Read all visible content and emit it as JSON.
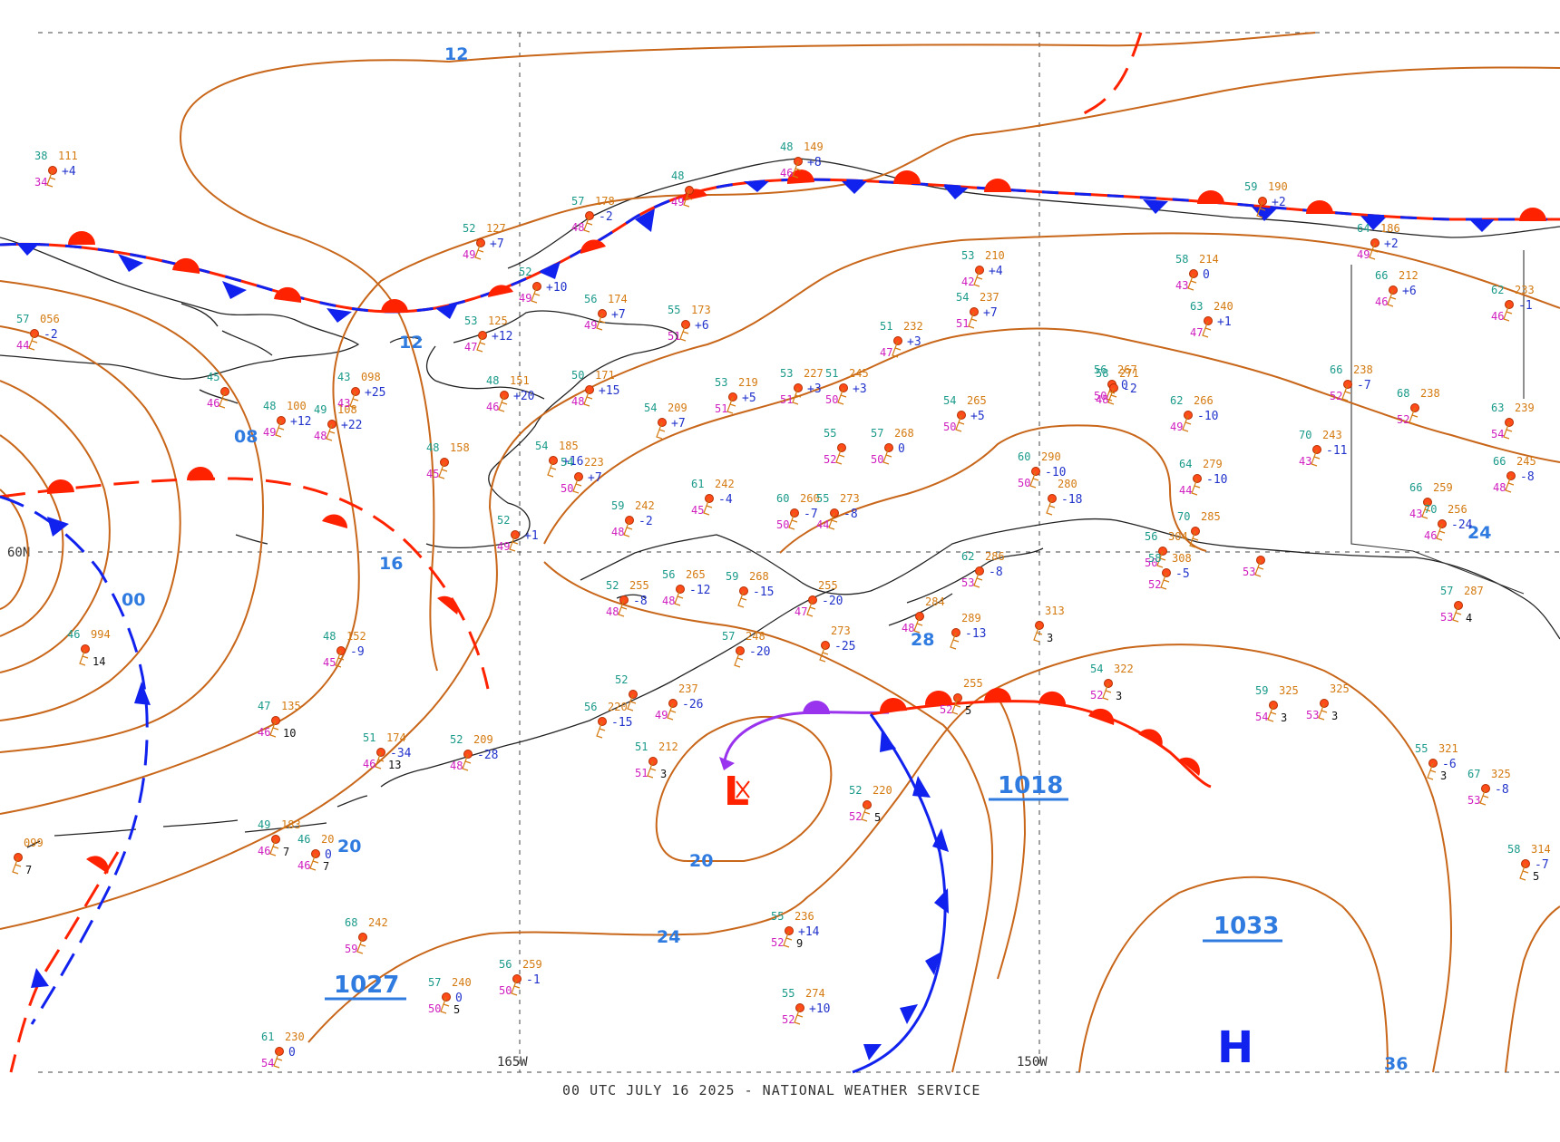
{
  "footer": "00 UTC JULY 16 2025 - NATIONAL WEATHER SERVICE",
  "grid_labels": {
    "lon_165": "165W",
    "lon_150": "150W",
    "lat_60": "60N"
  },
  "colors": {
    "isobar": "#c8661a",
    "warm_front": "#ff2200",
    "cold_front": "#1122ee",
    "occluded_front": "#9933ee",
    "label_blue": "#2f7be0"
  },
  "isobar_labels": [
    "12",
    "12",
    "08",
    "16",
    "00",
    "20",
    "20",
    "24",
    "28",
    "24",
    "36"
  ],
  "pressure_centers": [
    {
      "type": "H",
      "value": "1027",
      "color": "#2f7be0"
    },
    {
      "type": "L",
      "value": "1018",
      "color": "#ff2200"
    },
    {
      "type": "H",
      "value": "1033",
      "color": "#2f7be0"
    }
  ],
  "center_symbols": {
    "low": "L",
    "high": "H"
  },
  "stations": [
    {
      "t": "38",
      "p": "111",
      "d": "34",
      "tend": "+4"
    },
    {
      "t": "57",
      "p": "056",
      "d": "44",
      "tend": "-2"
    },
    {
      "t": "45",
      "p": "",
      "d": "46",
      "tend": ""
    },
    {
      "t": "48",
      "p": "100",
      "d": "49",
      "tend": "+12"
    },
    {
      "t": "49",
      "p": "108",
      "d": "48",
      "tend": "+22"
    },
    {
      "t": "43",
      "p": "098",
      "d": "43",
      "tend": "+25"
    },
    {
      "t": "53",
      "p": "125",
      "d": "47",
      "tend": "+12"
    },
    {
      "t": "52",
      "p": "127",
      "d": "49",
      "tend": "+7"
    },
    {
      "t": "48",
      "p": "151",
      "d": "46",
      "tend": "+20"
    },
    {
      "t": "50",
      "p": "171",
      "d": "48",
      "tend": "+15"
    },
    {
      "t": "57",
      "p": "178",
      "d": "48",
      "tend": "-2"
    },
    {
      "t": "52",
      "p": "",
      "d": "49",
      "tend": "+10"
    },
    {
      "t": "56",
      "p": "174",
      "d": "49",
      "tend": "+7"
    },
    {
      "t": "48",
      "p": "",
      "d": "49",
      "tend": ""
    },
    {
      "t": "48",
      "p": "149",
      "d": "46",
      "tend": "+8"
    },
    {
      "t": "55",
      "p": "173",
      "d": "51",
      "tend": "+6"
    },
    {
      "t": "54",
      "p": "209",
      "d": "",
      "tend": "+7"
    },
    {
      "t": "54",
      "p": "185",
      "d": "",
      "tend": "+16"
    },
    {
      "t": "54",
      "p": "223",
      "d": "50",
      "tend": "+7"
    },
    {
      "t": "48",
      "p": "158",
      "d": "45",
      "tend": ""
    },
    {
      "t": "52",
      "p": "",
      "d": "49",
      "tend": "+1"
    },
    {
      "t": "59",
      "p": "242",
      "d": "48",
      "tend": "-2"
    },
    {
      "t": "61",
      "p": "242",
      "d": "45",
      "tend": "-4"
    },
    {
      "t": "60",
      "p": "260",
      "d": "50",
      "tend": "-7"
    },
    {
      "t": "55",
      "p": "273",
      "d": "44",
      "tend": "-8"
    },
    {
      "t": "53",
      "p": "219",
      "d": "51",
      "tend": "+5"
    },
    {
      "t": "53",
      "p": "227",
      "d": "51",
      "tend": "+3"
    },
    {
      "t": "51",
      "p": "245",
      "d": "50",
      "tend": "+3"
    },
    {
      "t": "51",
      "p": "232",
      "d": "47",
      "tend": "+3"
    },
    {
      "t": "55",
      "p": "",
      "d": "52",
      "tend": ""
    },
    {
      "t": "57",
      "p": "268",
      "d": "50",
      "tend": "0"
    },
    {
      "t": "54",
      "p": "237",
      "d": "51",
      "tend": "+7"
    },
    {
      "t": "53",
      "p": "210",
      "d": "42",
      "tend": "+4"
    },
    {
      "t": "54",
      "p": "265",
      "d": "50",
      "tend": "+5"
    },
    {
      "t": "56",
      "p": "267",
      "d": "50",
      "tend": "0"
    },
    {
      "t": "58",
      "p": "271",
      "d": "48",
      "tend": "-2"
    },
    {
      "t": "62",
      "p": "266",
      "d": "49",
      "tend": "-10"
    },
    {
      "t": "58",
      "p": "214",
      "d": "43",
      "tend": "0"
    },
    {
      "t": "63",
      "p": "240",
      "d": "47",
      "tend": "+1"
    },
    {
      "t": "59",
      "p": "190",
      "d": "",
      "tend": "+2"
    },
    {
      "t": "60",
      "p": "290",
      "d": "50",
      "tend": "-10"
    },
    {
      "t": "",
      "p": "280",
      "d": "",
      "tend": "-18"
    },
    {
      "t": "70",
      "p": "243",
      "d": "43",
      "tend": "-11"
    },
    {
      "t": "64",
      "p": "279",
      "d": "44",
      "tend": "-10"
    },
    {
      "t": "66",
      "p": "238",
      "d": "52",
      "tend": "-7"
    },
    {
      "t": "68",
      "p": "238",
      "d": "52",
      "tend": ""
    },
    {
      "t": "66",
      "p": "212",
      "d": "46",
      "tend": "+6"
    },
    {
      "t": "64",
      "p": "186",
      "d": "49",
      "tend": "+2"
    },
    {
      "t": "66",
      "p": "259",
      "d": "43",
      "tend": ""
    },
    {
      "t": "70",
      "p": "256",
      "d": "46",
      "tend": "-24"
    },
    {
      "t": "63",
      "p": "239",
      "d": "54",
      "tend": ""
    },
    {
      "t": "66",
      "p": "245",
      "d": "48",
      "tend": "-8"
    },
    {
      "t": "62",
      "p": "233",
      "d": "46",
      "tend": "-1"
    },
    {
      "t": "56",
      "p": "265",
      "d": "48",
      "tend": "-12"
    },
    {
      "t": "59",
      "p": "268",
      "d": "",
      "tend": "-15"
    },
    {
      "t": "52",
      "p": "255",
      "d": "48",
      "tend": "-8"
    },
    {
      "t": "",
      "p": "255",
      "d": "47",
      "tend": "-20"
    },
    {
      "t": "57",
      "p": "248",
      "d": "",
      "tend": "-20"
    },
    {
      "t": "",
      "p": "273",
      "d": "",
      "tend": "-25"
    },
    {
      "t": "",
      "p": "284",
      "d": "48",
      "tend": ""
    },
    {
      "t": "",
      "p": "289",
      "d": "",
      "tend": "-13"
    },
    {
      "t": "62",
      "p": "286",
      "d": "53",
      "tend": "-8"
    },
    {
      "t": "56",
      "p": "304",
      "d": "50",
      "tend": ""
    },
    {
      "t": "58",
      "p": "308",
      "d": "52",
      "tend": "-5"
    },
    {
      "t": "70",
      "p": "285",
      "d": "",
      "tend": ""
    },
    {
      "t": "",
      "p": "",
      "d": "53",
      "tend": ""
    },
    {
      "t": "",
      "p": "313",
      "d": "",
      "tend": "",
      "v": "3"
    },
    {
      "t": "54",
      "p": "322",
      "d": "52",
      "tend": "",
      "v": "3"
    },
    {
      "t": "59",
      "p": "325",
      "d": "54",
      "tend": "",
      "v": "3"
    },
    {
      "t": "",
      "p": "325",
      "d": "53",
      "tend": "",
      "v": "3"
    },
    {
      "t": "55",
      "p": "321",
      "d": "",
      "tend": "-6",
      "v": "3"
    },
    {
      "t": "67",
      "p": "325",
      "d": "53",
      "tend": "-8"
    },
    {
      "t": "58",
      "p": "314",
      "d": "",
      "tend": "-7",
      "v": "5"
    },
    {
      "t": "57",
      "p": "287",
      "d": "53",
      "tend": "",
      "v": "4"
    },
    {
      "t": "52",
      "p": "",
      "d": "",
      "tend": ""
    },
    {
      "t": "56",
      "p": "220",
      "d": "",
      "tend": "-15"
    },
    {
      "t": "",
      "p": "237",
      "d": "49",
      "tend": "-26"
    },
    {
      "t": "51",
      "p": "212",
      "d": "51",
      "tend": "",
      "v": "3"
    },
    {
      "t": "52",
      "p": "220",
      "d": "52",
      "tend": "",
      "v": "5"
    },
    {
      "t": "",
      "p": "255",
      "d": "52",
      "tend": "",
      "v": "5"
    },
    {
      "t": "48",
      "p": "152",
      "d": "45",
      "tend": "-9"
    },
    {
      "t": "46",
      "p": "994",
      "d": "",
      "tend": "",
      "v": "14"
    },
    {
      "t": "47",
      "p": "135",
      "d": "46",
      "tend": "",
      "v": "10"
    },
    {
      "t": "51",
      "p": "174",
      "d": "46",
      "tend": "-34",
      "v": "13"
    },
    {
      "t": "52",
      "p": "209",
      "d": "48",
      "tend": "-28"
    },
    {
      "t": "49",
      "p": "183",
      "d": "46",
      "tend": "",
      "v": "7"
    },
    {
      "t": "46",
      "p": "20",
      "d": "46",
      "tend": "0",
      "v": "7"
    },
    {
      "t": "",
      "p": "099",
      "d": "",
      "tend": "",
      "v": "7"
    },
    {
      "t": "68",
      "p": "242",
      "d": "59",
      "tend": ""
    },
    {
      "t": "57",
      "p": "240",
      "d": "50",
      "tend": "0",
      "v": "5"
    },
    {
      "t": "56",
      "p": "259",
      "d": "50",
      "tend": "-1"
    },
    {
      "t": "61",
      "p": "230",
      "d": "54",
      "tend": "0"
    },
    {
      "t": "55",
      "p": "236",
      "d": "52",
      "tend": "+14",
      "v": "9"
    },
    {
      "t": "55",
      "p": "274",
      "d": "52",
      "tend": "+10"
    }
  ]
}
